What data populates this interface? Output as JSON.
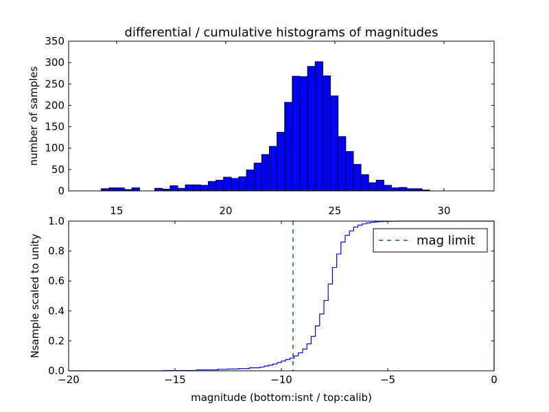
{
  "chart_data": [
    {
      "type": "bar",
      "title": "differential / cumulative histograms of magnitudes",
      "xlabel": "",
      "ylabel": "number of samples",
      "xlim": [
        12.8,
        32.3
      ],
      "ylim": [
        0,
        350
      ],
      "x_ticks": [
        15,
        20,
        25,
        30
      ],
      "y_ticks": [
        0,
        50,
        100,
        150,
        200,
        250,
        300,
        350
      ],
      "bar_color": "#0000ff",
      "bin_width": 0.35,
      "bin_starts": [
        14.3,
        14.65,
        15.0,
        15.35,
        15.7,
        16.05,
        16.75,
        17.1,
        17.45,
        17.8,
        18.15,
        18.5,
        18.85,
        19.2,
        19.55,
        19.9,
        20.25,
        20.6,
        20.95,
        21.3,
        21.65,
        22.0,
        22.35,
        22.7,
        23.05,
        23.4,
        23.75,
        24.1,
        24.45,
        24.8,
        25.15,
        25.5,
        25.85,
        26.2,
        26.55,
        26.9,
        27.25,
        27.6,
        27.95,
        28.3,
        28.65,
        29.0,
        29.35
      ],
      "values": [
        5,
        7,
        7,
        3,
        7,
        0,
        6,
        4,
        12,
        6,
        14,
        14,
        13,
        22,
        25,
        32,
        29,
        33,
        49,
        65,
        85,
        104,
        137,
        207,
        268,
        267,
        291,
        302,
        269,
        222,
        127,
        92,
        62,
        38,
        19,
        25,
        13,
        7,
        8,
        5,
        5,
        2,
        0
      ]
    },
    {
      "type": "line",
      "title": "",
      "xlabel": "magnitude (bottom:isnt / top:calib)",
      "ylabel": "Nsample scaled to unity",
      "xlim": [
        -20,
        0
      ],
      "ylim": [
        0,
        1
      ],
      "x_ticks": [
        -20,
        -15,
        -10,
        -5,
        0
      ],
      "y_ticks": [
        "0.0",
        "0.2",
        "0.4",
        "0.6",
        "0.8",
        "1.0"
      ],
      "legend": {
        "label": "mag limit",
        "position": "top-right"
      },
      "mag_limit_x": -9.45,
      "series": [
        {
          "style": "step",
          "color": "#0000ff",
          "x": [
            -20,
            -15.5,
            -14,
            -13,
            -12.5,
            -12,
            -11.5,
            -11,
            -10.8,
            -10.6,
            -10.4,
            -10.2,
            -10.0,
            -9.8,
            -9.6,
            -9.4,
            -9.2,
            -9.0,
            -8.8,
            -8.6,
            -8.4,
            -8.2,
            -8.0,
            -7.8,
            -7.6,
            -7.4,
            -7.2,
            -7.0,
            -6.8,
            -6.6,
            -6.4,
            -6.2,
            -6.0,
            -5.8,
            -5.6,
            -5.4,
            -5.2,
            -5.0,
            -4.8,
            -4.6,
            -4.4,
            -4.2,
            -0.05
          ],
          "y": [
            0,
            0.002,
            0.006,
            0.01,
            0.012,
            0.015,
            0.02,
            0.025,
            0.032,
            0.038,
            0.045,
            0.055,
            0.065,
            0.075,
            0.085,
            0.1,
            0.12,
            0.145,
            0.18,
            0.23,
            0.3,
            0.38,
            0.47,
            0.58,
            0.69,
            0.78,
            0.86,
            0.905,
            0.935,
            0.96,
            0.973,
            0.982,
            0.988,
            0.992,
            0.995,
            0.997,
            0.998,
            0.999,
            0.9995,
            1.0,
            1.0,
            1.0,
            1.0
          ]
        }
      ]
    }
  ]
}
